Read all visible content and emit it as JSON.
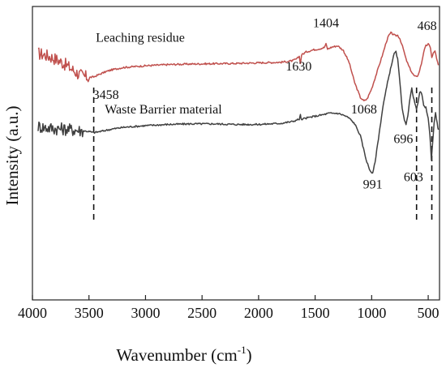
{
  "chart_data": {
    "type": "line",
    "xlabel": "Wavenumber (cm",
    "xlabel_sup": "-1",
    "xlabel_end": ")",
    "ylabel": "Intensity (a.u.)",
    "xlim": [
      4000,
      400
    ],
    "x_reversed": true,
    "xticks": [
      {
        "value": 4000,
        "label": "4000"
      },
      {
        "value": 3500,
        "label": "3500"
      },
      {
        "value": 3000,
        "label": "3000"
      },
      {
        "value": 2500,
        "label": "2500"
      },
      {
        "value": 2000,
        "label": "2000"
      },
      {
        "value": 1500,
        "label": "1500"
      },
      {
        "value": 1000,
        "label": "1000"
      },
      {
        "value": 500,
        "label": "500"
      }
    ],
    "ylim": [
      0,
      10
    ],
    "y_ticks_shown": false,
    "grid": false,
    "legend": "none",
    "series": [
      {
        "label": "Leaching residue",
        "color": "#c0504d",
        "noise_region": [
          3950,
          3500
        ],
        "points": [
          [
            3950,
            8.4
          ],
          [
            3900,
            8.36
          ],
          [
            3850,
            8.3
          ],
          [
            3800,
            8.22
          ],
          [
            3750,
            8.12
          ],
          [
            3700,
            8.0
          ],
          [
            3650,
            7.86
          ],
          [
            3600,
            7.72
          ],
          [
            3550,
            7.62
          ],
          [
            3500,
            7.58
          ],
          [
            3458,
            7.6
          ],
          [
            3400,
            7.7
          ],
          [
            3350,
            7.78
          ],
          [
            3300,
            7.84
          ],
          [
            3200,
            7.92
          ],
          [
            3000,
            7.98
          ],
          [
            2800,
            8.02
          ],
          [
            2600,
            8.04
          ],
          [
            2400,
            8.05
          ],
          [
            2200,
            8.06
          ],
          [
            2000,
            8.08
          ],
          [
            1800,
            8.1
          ],
          [
            1700,
            8.15
          ],
          [
            1660,
            8.22
          ],
          [
            1640,
            8.3
          ],
          [
            1630,
            8.05
          ],
          [
            1620,
            8.35
          ],
          [
            1580,
            8.45
          ],
          [
            1520,
            8.52
          ],
          [
            1460,
            8.56
          ],
          [
            1420,
            8.6
          ],
          [
            1404,
            8.72
          ],
          [
            1390,
            8.55
          ],
          [
            1350,
            8.62
          ],
          [
            1300,
            8.66
          ],
          [
            1250,
            8.5
          ],
          [
            1200,
            8.1
          ],
          [
            1150,
            7.4
          ],
          [
            1100,
            6.9
          ],
          [
            1068,
            6.78
          ],
          [
            1040,
            6.85
          ],
          [
            1000,
            7.2
          ],
          [
            950,
            7.8
          ],
          [
            900,
            8.4
          ],
          [
            870,
            8.8
          ],
          [
            850,
            9.0
          ],
          [
            830,
            9.1
          ],
          [
            810,
            9.05
          ],
          [
            790,
            9.0
          ],
          [
            770,
            9.02
          ],
          [
            750,
            8.9
          ],
          [
            720,
            8.55
          ],
          [
            696,
            8.2
          ],
          [
            670,
            7.95
          ],
          [
            640,
            7.72
          ],
          [
            620,
            7.62
          ],
          [
            603,
            7.6
          ],
          [
            585,
            7.7
          ],
          [
            560,
            8.05
          ],
          [
            540,
            8.45
          ],
          [
            520,
            8.66
          ],
          [
            500,
            8.72
          ],
          [
            480,
            8.6
          ],
          [
            468,
            8.25
          ],
          [
            455,
            8.4
          ],
          [
            440,
            8.5
          ],
          [
            425,
            8.2
          ],
          [
            410,
            8.0
          ]
        ]
      },
      {
        "label": "Waste Barrier material",
        "color": "#404040",
        "noise_region": [
          3950,
          3550
        ],
        "points": [
          [
            3950,
            5.92
          ],
          [
            3900,
            5.88
          ],
          [
            3850,
            5.86
          ],
          [
            3800,
            5.84
          ],
          [
            3700,
            5.82
          ],
          [
            3600,
            5.78
          ],
          [
            3500,
            5.74
          ],
          [
            3458,
            5.7
          ],
          [
            3400,
            5.74
          ],
          [
            3300,
            5.82
          ],
          [
            3200,
            5.88
          ],
          [
            3000,
            5.94
          ],
          [
            2800,
            5.98
          ],
          [
            2600,
            6.0
          ],
          [
            2400,
            6.0
          ],
          [
            2200,
            5.98
          ],
          [
            2000,
            5.98
          ],
          [
            1800,
            6.02
          ],
          [
            1700,
            6.08
          ],
          [
            1640,
            6.16
          ],
          [
            1630,
            6.3
          ],
          [
            1620,
            6.12
          ],
          [
            1600,
            6.18
          ],
          [
            1500,
            6.26
          ],
          [
            1420,
            6.32
          ],
          [
            1380,
            6.36
          ],
          [
            1300,
            6.36
          ],
          [
            1250,
            6.3
          ],
          [
            1200,
            6.2
          ],
          [
            1150,
            6.0
          ],
          [
            1100,
            5.6
          ],
          [
            1050,
            4.8
          ],
          [
            1020,
            4.45
          ],
          [
            991,
            4.3
          ],
          [
            970,
            4.7
          ],
          [
            940,
            5.5
          ],
          [
            900,
            6.6
          ],
          [
            860,
            7.4
          ],
          [
            820,
            8.1
          ],
          [
            800,
            8.4
          ],
          [
            785,
            8.45
          ],
          [
            770,
            8.2
          ],
          [
            750,
            7.4
          ],
          [
            730,
            6.5
          ],
          [
            710,
            6.1
          ],
          [
            696,
            6.0
          ],
          [
            680,
            6.3
          ],
          [
            660,
            6.9
          ],
          [
            645,
            7.2
          ],
          [
            625,
            6.8
          ],
          [
            603,
            6.5
          ],
          [
            590,
            6.7
          ],
          [
            575,
            7.1
          ],
          [
            555,
            7.0
          ],
          [
            540,
            6.6
          ],
          [
            520,
            6.55
          ],
          [
            500,
            6.2
          ],
          [
            485,
            5.6
          ],
          [
            472,
            4.8
          ],
          [
            460,
            5.4
          ],
          [
            448,
            6.0
          ],
          [
            435,
            6.4
          ],
          [
            420,
            6.0
          ],
          [
            410,
            5.8
          ]
        ]
      }
    ],
    "dashed_markers": [
      3458,
      603,
      468
    ],
    "annotations": [
      {
        "label": "3458",
        "x": 3350,
        "y": 6.85
      },
      {
        "label": "1630",
        "x": 1645,
        "y": 7.82
      },
      {
        "label": "1404",
        "x": 1404,
        "y": 9.3
      },
      {
        "label": "1068",
        "x": 1068,
        "y": 6.35
      },
      {
        "label": "468",
        "x": 510,
        "y": 9.2
      },
      {
        "label": "991",
        "x": 991,
        "y": 3.8
      },
      {
        "label": "696",
        "x": 720,
        "y": 5.35
      },
      {
        "label": "603",
        "x": 630,
        "y": 4.05
      }
    ],
    "series_labels": [
      {
        "label": "Leaching residue",
        "x": 3440,
        "y": 8.8
      },
      {
        "label": "Waste Barrier material",
        "x": 3360,
        "y": 6.35
      }
    ]
  }
}
